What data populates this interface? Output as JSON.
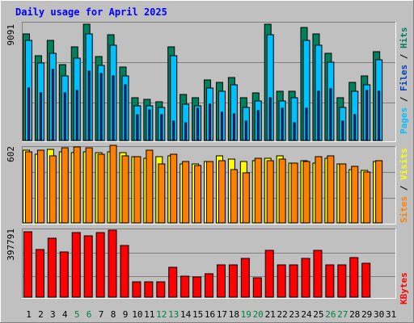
{
  "title": "Daily usage for April 2025",
  "colors": {
    "background": "#c0c0c0",
    "panel": "#c0c0c0",
    "grid": "#808080",
    "hits": "#00805c",
    "files": "#00c0ff",
    "pages": "#0040c0",
    "visits": "#ffff00",
    "sites": "#ff8000",
    "kbytes": "#ff0000",
    "weekday_label": "#000000",
    "weekend_label": "#008040",
    "title": "#0000ff"
  },
  "side_labels": {
    "top": [
      "Pages",
      "Files",
      "Hits"
    ],
    "middle": [
      "Sites",
      "Visits"
    ],
    "bottom": [
      "KBytes"
    ]
  },
  "side_label_separator": " / ",
  "chart_data": [
    {
      "type": "bar",
      "title": "Daily usage for April 2025",
      "ymax_label": "9091",
      "ylim": [
        0,
        9091
      ],
      "categories": [
        "1",
        "2",
        "3",
        "4",
        "5",
        "6",
        "7",
        "8",
        "9",
        "10",
        "11",
        "12",
        "13",
        "14",
        "15",
        "16",
        "17",
        "18",
        "19",
        "20",
        "21",
        "22",
        "23",
        "24",
        "25",
        "26",
        "27",
        "28",
        "29",
        "30",
        "31"
      ],
      "weekend_days": [
        "5",
        "6",
        "12",
        "13",
        "19",
        "20",
        "26",
        "27"
      ],
      "series": [
        {
          "name": "Hits",
          "values": [
            8300,
            6600,
            7800,
            5900,
            7300,
            9000,
            6500,
            8200,
            5700,
            3300,
            3200,
            3000,
            7300,
            3600,
            3300,
            4700,
            4500,
            4900,
            3300,
            3700,
            9000,
            3800,
            3800,
            8800,
            8300,
            6800,
            3300,
            4500,
            5000,
            6900,
            0
          ]
        },
        {
          "name": "Files",
          "values": [
            7800,
            6000,
            6800,
            5000,
            6400,
            8300,
            5800,
            7400,
            5000,
            2700,
            2700,
            2600,
            6600,
            2800,
            2700,
            4100,
            3800,
            4300,
            2600,
            3100,
            8200,
            3100,
            3300,
            7800,
            7400,
            6100,
            2600,
            3800,
            4300,
            6300,
            0
          ]
        },
        {
          "name": "Pages",
          "values": [
            4100,
            3700,
            5500,
            3700,
            3900,
            5400,
            5200,
            5000,
            4300,
            2000,
            2400,
            2000,
            1500,
            1400,
            2500,
            2800,
            2200,
            2100,
            1500,
            2300,
            3300,
            2500,
            1400,
            2500,
            3800,
            4000,
            1500,
            2000,
            3900,
            3800,
            0
          ]
        }
      ]
    },
    {
      "type": "bar",
      "ymax_label": "602",
      "ylim": [
        0,
        602
      ],
      "categories": [
        "1",
        "2",
        "3",
        "4",
        "5",
        "6",
        "7",
        "8",
        "9",
        "10",
        "11",
        "12",
        "13",
        "14",
        "15",
        "16",
        "17",
        "18",
        "19",
        "20",
        "21",
        "22",
        "23",
        "24",
        "25",
        "26",
        "27",
        "28",
        "29",
        "30",
        "31"
      ],
      "series": [
        {
          "name": "Visits",
          "values": [
            580,
            550,
            590,
            570,
            560,
            570,
            560,
            570,
            560,
            530,
            520,
            530,
            540,
            470,
            470,
            490,
            540,
            510,
            490,
            500,
            520,
            540,
            480,
            500,
            480,
            520,
            470,
            430,
            420,
            490,
            0
          ]
        },
        {
          "name": "Sites",
          "values": [
            570,
            580,
            540,
            600,
            610,
            600,
            550,
            620,
            540,
            530,
            580,
            470,
            550,
            490,
            460,
            490,
            500,
            430,
            400,
            520,
            500,
            510,
            480,
            490,
            530,
            540,
            470,
            450,
            410,
            500,
            0
          ]
        }
      ]
    },
    {
      "type": "bar",
      "ymax_label": "397791",
      "ylim": [
        0,
        397791
      ],
      "categories": [
        "1",
        "2",
        "3",
        "4",
        "5",
        "6",
        "7",
        "8",
        "9",
        "10",
        "11",
        "12",
        "13",
        "14",
        "15",
        "16",
        "17",
        "18",
        "19",
        "20",
        "21",
        "22",
        "23",
        "24",
        "25",
        "26",
        "27",
        "28",
        "29",
        "30",
        "31"
      ],
      "series": [
        {
          "name": "KBytes",
          "values": [
            388000,
            281000,
            350000,
            269000,
            383000,
            365000,
            384000,
            396000,
            305000,
            92000,
            89000,
            90000,
            177000,
            125000,
            119000,
            140000,
            194000,
            193000,
            229000,
            113000,
            280000,
            193000,
            193000,
            232000,
            278000,
            190000,
            194000,
            234000,
            199000,
            0,
            0
          ]
        }
      ]
    }
  ]
}
